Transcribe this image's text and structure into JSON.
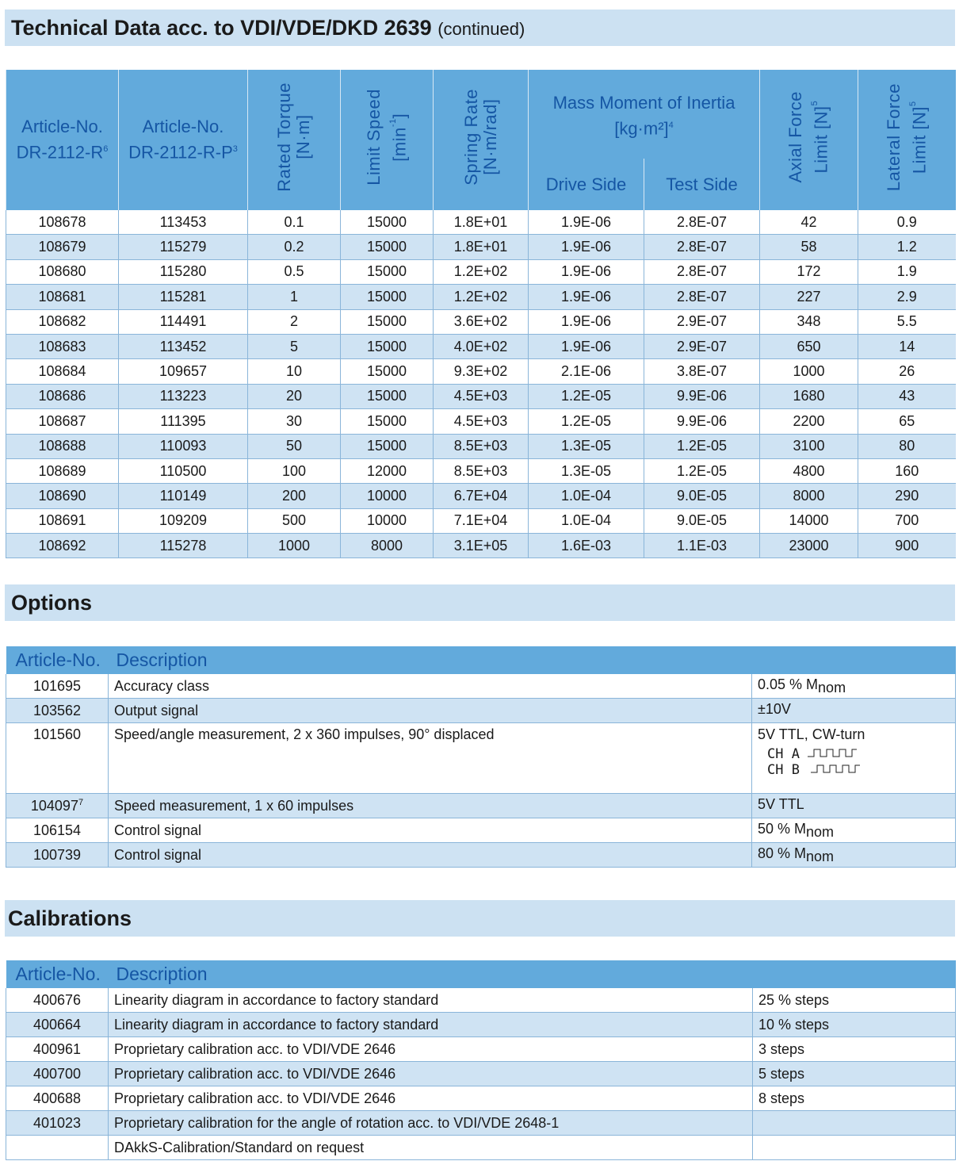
{
  "tech": {
    "title": "Technical Data acc. to VDI/VDE/DKD 2639",
    "title_suffix": "(continued)",
    "headers": {
      "art1": "Article-No.",
      "art1b": "DR-2112-R",
      "art1_sup": "6",
      "art2": "Article-No.",
      "art2b": "DR-2112-R-P",
      "art2_sup": "3",
      "torque": "Rated Torque",
      "torque_u": "[N·m]",
      "speed": "Limit Speed",
      "speed_u": "[min",
      "speed_sup": "-1",
      "speed_end": "]",
      "spring": "Spring Rate",
      "spring_u": "[N·m/rad]",
      "inertia": "Mass Moment of Inertia",
      "inertia_u": "[kg·m²]",
      "inertia_sup": "4",
      "drive": "Drive Side",
      "test": "Test Side",
      "axial": "Axial Force",
      "axial_u": "Limit [N]",
      "axial_sup": "5",
      "lateral": "Lateral Force",
      "lateral_u": "Limit [N]",
      "lateral_sup": "5"
    },
    "rows": [
      [
        "108678",
        "113453",
        "0.1",
        "15000",
        "1.8E+01",
        "1.9E-06",
        "2.8E-07",
        "42",
        "0.9"
      ],
      [
        "108679",
        "115279",
        "0.2",
        "15000",
        "1.8E+01",
        "1.9E-06",
        "2.8E-07",
        "58",
        "1.2"
      ],
      [
        "108680",
        "115280",
        "0.5",
        "15000",
        "1.2E+02",
        "1.9E-06",
        "2.8E-07",
        "172",
        "1.9"
      ],
      [
        "108681",
        "115281",
        "1",
        "15000",
        "1.2E+02",
        "1.9E-06",
        "2.8E-07",
        "227",
        "2.9"
      ],
      [
        "108682",
        "114491",
        "2",
        "15000",
        "3.6E+02",
        "1.9E-06",
        "2.9E-07",
        "348",
        "5.5"
      ],
      [
        "108683",
        "113452",
        "5",
        "15000",
        "4.0E+02",
        "1.9E-06",
        "2.9E-07",
        "650",
        "14"
      ],
      [
        "108684",
        "109657",
        "10",
        "15000",
        "9.3E+02",
        "2.1E-06",
        "3.8E-07",
        "1000",
        "26"
      ],
      [
        "108686",
        "113223",
        "20",
        "15000",
        "4.5E+03",
        "1.2E-05",
        "9.9E-06",
        "1680",
        "43"
      ],
      [
        "108687",
        "111395",
        "30",
        "15000",
        "4.5E+03",
        "1.2E-05",
        "9.9E-06",
        "2200",
        "65"
      ],
      [
        "108688",
        "110093",
        "50",
        "15000",
        "8.5E+03",
        "1.3E-05",
        "1.2E-05",
        "3100",
        "80"
      ],
      [
        "108689",
        "110500",
        "100",
        "12000",
        "8.5E+03",
        "1.3E-05",
        "1.2E-05",
        "4800",
        "160"
      ],
      [
        "108690",
        "110149",
        "200",
        "10000",
        "6.7E+04",
        "1.0E-04",
        "9.0E-05",
        "8000",
        "290"
      ],
      [
        "108691",
        "109209",
        "500",
        "10000",
        "7.1E+04",
        "1.0E-04",
        "9.0E-05",
        "14000",
        "700"
      ],
      [
        "108692",
        "115278",
        "1000",
        "8000",
        "3.1E+05",
        "1.6E-03",
        "1.1E-03",
        "23000",
        "900"
      ]
    ]
  },
  "options": {
    "title": "Options",
    "col_article": "Article-No.",
    "col_desc": "Description",
    "rows": [
      {
        "no": "101695",
        "sup": "",
        "desc": "Accuracy class",
        "val": "0.05 % M",
        "sub": "nom"
      },
      {
        "no": "103562",
        "sup": "",
        "desc": "Output signal",
        "val": "±10V",
        "sub": ""
      },
      {
        "no": "101560",
        "sup": "",
        "desc": "Speed/angle measurement, 2 x 360 impulses, 90° displaced",
        "val": "5V TTL, CW-turn",
        "sub": "",
        "ch_a": "CH A",
        "ch_b": "CH B"
      },
      {
        "no": "104097",
        "sup": "7",
        "desc": "Speed measurement, 1 x 60 impulses",
        "val": "5V TTL",
        "sub": ""
      },
      {
        "no": "106154",
        "sup": "",
        "desc": "Control signal",
        "val": "50 % M",
        "sub": "nom"
      },
      {
        "no": "100739",
        "sup": "",
        "desc": "Control signal",
        "val": "80 % M",
        "sub": "nom"
      }
    ]
  },
  "calibrations": {
    "title": "Calibrations",
    "col_article": "Article-No.",
    "col_desc": "Description",
    "rows": [
      {
        "no": "400676",
        "desc": "Linearity diagram in accordance to factory standard",
        "val": "25 % steps"
      },
      {
        "no": "400664",
        "desc": "Linearity diagram in accordance to factory standard",
        "val": "10 % steps"
      },
      {
        "no": "400961",
        "desc": "Proprietary calibration acc. to VDI/VDE 2646",
        "val": "3 steps"
      },
      {
        "no": "400700",
        "desc": "Proprietary calibration acc. to VDI/VDE 2646",
        "val": "5 steps"
      },
      {
        "no": "400688",
        "desc": "Proprietary calibration acc. to VDI/VDE 2646",
        "val": "8 steps"
      },
      {
        "no": "401023",
        "desc": "Proprietary calibration for the angle of rotation acc. to VDI/VDE 2648-1",
        "val": ""
      },
      {
        "no": "",
        "desc": "DAkkS-Calibration/Standard on request",
        "val": ""
      }
    ]
  },
  "colors": {
    "band": "#cce1f2",
    "header": "#62aadc",
    "header_text": "#1556a4",
    "row_alt": "#cfe3f3"
  }
}
